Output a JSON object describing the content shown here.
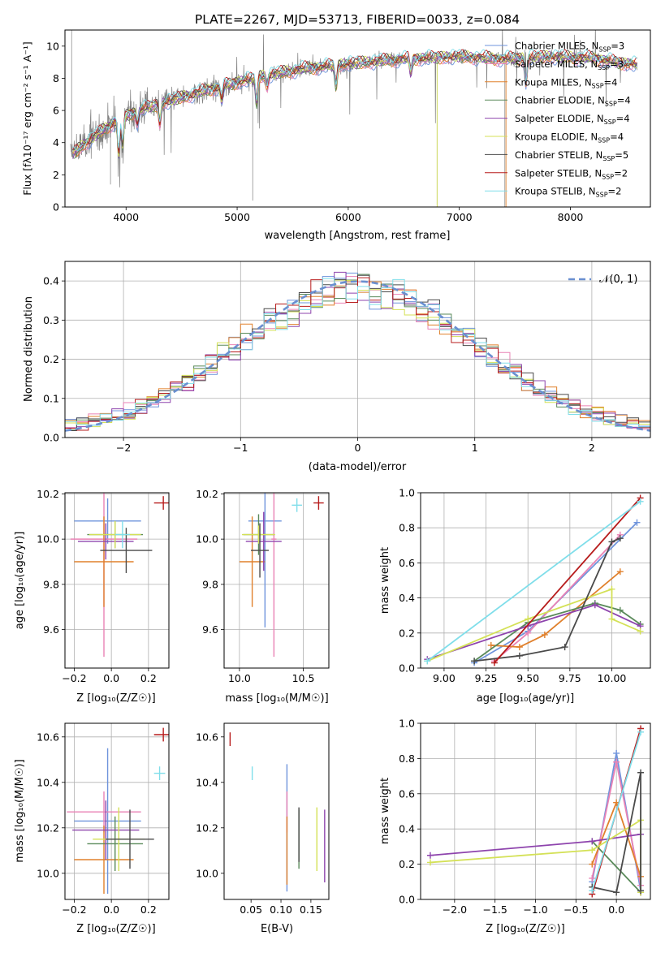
{
  "chart_data": [
    {
      "id": "spectrum",
      "type": "line",
      "title": "PLATE=2267, MJD=53713, FIBERID=0033, z=0.084",
      "xlabel": "wavelength [Angstrom, rest frame]",
      "ylabel": "Flux [fλ10⁻¹⁷ erg cm⁻² s⁻¹ A⁻¹]",
      "xlim": [
        3450,
        8720
      ],
      "ylim": [
        0,
        11
      ],
      "xticks": [
        4000,
        5000,
        6000,
        7000,
        8000
      ],
      "yticks": [
        0,
        2,
        4,
        6,
        8,
        10
      ],
      "grid": false,
      "legend_loc": "right",
      "observed_color": "#808080",
      "series": [
        {
          "name": "Chabrier MILES, N",
          "sub": "SSP",
          "suffix": "=3",
          "color": "#6f94dc"
        },
        {
          "name": "Salpeter MILES, N",
          "sub": "SSP",
          "suffix": "=3",
          "color": "#e982b5"
        },
        {
          "name": "Kroupa MILES, N",
          "sub": "SSP",
          "suffix": "=4",
          "color": "#e0802c"
        },
        {
          "name": "Chabrier ELODIE, N",
          "sub": "SSP",
          "suffix": "=4",
          "color": "#5a8a5a"
        },
        {
          "name": "Salpeter ELODIE, N",
          "sub": "SSP",
          "suffix": "=4",
          "color": "#8e44ad"
        },
        {
          "name": "Kroupa ELODIE, N",
          "sub": "SSP",
          "suffix": "=4",
          "color": "#d4e157"
        },
        {
          "name": "Chabrier STELIB, N",
          "sub": "SSP",
          "suffix": "=5",
          "color": "#4a4a4a"
        },
        {
          "name": "Salpeter STELIB, N",
          "sub": "SSP",
          "suffix": "=2",
          "color": "#b71c1c"
        },
        {
          "name": "Kroupa STELIB, N",
          "sub": "SSP",
          "suffix": "=2",
          "color": "#80deea"
        }
      ],
      "continuum": [
        [
          3500,
          3.2
        ],
        [
          3700,
          4.3
        ],
        [
          3900,
          5.3
        ],
        [
          4100,
          6.0
        ],
        [
          4400,
          6.6
        ],
        [
          4800,
          7.4
        ],
        [
          5200,
          8.1
        ],
        [
          5600,
          8.6
        ],
        [
          6000,
          8.9
        ],
        [
          6500,
          9.2
        ],
        [
          7000,
          9.35
        ],
        [
          7400,
          9.2
        ],
        [
          7800,
          9.35
        ],
        [
          8200,
          9.25
        ],
        [
          8500,
          8.9
        ]
      ]
    },
    {
      "id": "residuals",
      "type": "histogram",
      "xlabel": "(data-model)/error",
      "ylabel": "Normed distribution",
      "xlim": [
        -2.5,
        2.5
      ],
      "ylim": [
        0,
        0.45
      ],
      "xticks": [
        -2,
        -1,
        0,
        1,
        2
      ],
      "yticks": [
        0.0,
        0.1,
        0.2,
        0.3,
        0.4
      ],
      "grid": true,
      "legend_loc": "upper right",
      "normal_label": "𝒩(0, 1)",
      "normal_color": "#6a8fd0"
    },
    {
      "id": "age-vs-Z",
      "type": "errorbar",
      "xlabel": "Z [log₁₀(Z/Z☉)]",
      "ylabel": "age  [log₁₀(age/yr)]",
      "xlim": [
        -0.25,
        0.31
      ],
      "ylim": [
        9.43,
        10.205
      ],
      "xticks": [
        -0.2,
        0.0,
        0.2
      ],
      "yticks": [
        9.6,
        9.8,
        10.0,
        10.2
      ],
      "points": [
        {
          "color": "#6f94dc",
          "x": -0.02,
          "xerr": 0.18,
          "y": 10.08,
          "yerr": 0.1
        },
        {
          "color": "#e982b5",
          "x": -0.04,
          "xerr": 0.18,
          "y": 10.0,
          "yerr": 0.52
        },
        {
          "color": "#e0802c",
          "x": -0.04,
          "xerr": 0.16,
          "y": 9.9,
          "yerr": 0.2
        },
        {
          "color": "#5a8a5a",
          "x": 0.02,
          "xerr": 0.15,
          "y": 10.02,
          "yerr": 0.06
        },
        {
          "color": "#8e44ad",
          "x": -0.03,
          "xerr": 0.15,
          "y": 9.99,
          "yerr": 0.08
        },
        {
          "color": "#d4e157",
          "x": 0.02,
          "xerr": 0.14,
          "y": 10.02,
          "yerr": 0.06
        },
        {
          "color": "#4a4a4a",
          "x": 0.08,
          "xerr": 0.14,
          "y": 9.95,
          "yerr": 0.1
        },
        {
          "color": "#b71c1c",
          "x": 0.28,
          "xerr": 0.05,
          "y": 10.16,
          "yerr": 0.03
        },
        {
          "color": "#80deea",
          "x": 0.06,
          "xerr": 0.04,
          "y": 10.02,
          "yerr": 0.06
        }
      ]
    },
    {
      "id": "age-vs-mass",
      "type": "errorbar",
      "xlabel": "mass [log₁₀(M/M☉)]",
      "ylabel": "",
      "xlim": [
        9.88,
        10.7
      ],
      "ylim": [
        9.43,
        10.205
      ],
      "xticks": [
        10.0,
        10.5
      ],
      "yticks": [
        9.6,
        9.8,
        10.0,
        10.2
      ],
      "points": [
        {
          "color": "#6f94dc",
          "x": 10.2,
          "xerr": 0.13,
          "y": 10.08,
          "yerr": 0.47
        },
        {
          "color": "#e982b5",
          "x": 10.27,
          "xerr": 0.02,
          "y": 10.0,
          "yerr": 0.52
        },
        {
          "color": "#e0802c",
          "x": 10.1,
          "xerr": 0.1,
          "y": 9.9,
          "yerr": 0.2
        },
        {
          "color": "#5a8a5a",
          "x": 10.15,
          "xerr": 0.12,
          "y": 10.02,
          "yerr": 0.09
        },
        {
          "color": "#8e44ad",
          "x": 10.19,
          "xerr": 0.14,
          "y": 9.99,
          "yerr": 0.13
        },
        {
          "color": "#d4e157",
          "x": 10.15,
          "xerr": 0.13,
          "y": 10.02,
          "yerr": 0.04
        },
        {
          "color": "#4a4a4a",
          "x": 10.16,
          "xerr": 0.07,
          "y": 9.95,
          "yerr": 0.12
        },
        {
          "color": "#b71c1c",
          "x": 10.62,
          "xerr": 0.04,
          "y": 10.16,
          "yerr": 0.03
        },
        {
          "color": "#80deea",
          "x": 10.45,
          "xerr": 0.04,
          "y": 10.15,
          "yerr": 0.03
        }
      ]
    },
    {
      "id": "mass-weight-vs-age",
      "type": "line",
      "xlabel": "age  [log₁₀(age/yr)]",
      "ylabel": "mass weight",
      "xlim": [
        8.86,
        10.23
      ],
      "ylim": [
        0,
        1
      ],
      "xticks": [
        9.0,
        9.25,
        9.5,
        9.75,
        10.0
      ],
      "yticks": [
        0.0,
        0.2,
        0.4,
        0.6,
        0.8,
        1.0
      ],
      "series": [
        {
          "color": "#6f94dc",
          "points": [
            [
              9.18,
              0.03
            ],
            [
              9.5,
              0.21
            ],
            [
              10.15,
              0.83
            ]
          ]
        },
        {
          "color": "#e982b5",
          "points": [
            [
              9.3,
              0.04
            ],
            [
              9.5,
              0.2
            ],
            [
              10.05,
              0.76
            ]
          ]
        },
        {
          "color": "#e0802c",
          "points": [
            [
              9.28,
              0.13
            ],
            [
              9.45,
              0.12
            ],
            [
              9.6,
              0.19
            ],
            [
              10.05,
              0.55
            ]
          ]
        },
        {
          "color": "#5a8a5a",
          "points": [
            [
              9.18,
              0.04
            ],
            [
              9.5,
              0.26
            ],
            [
              9.9,
              0.37
            ],
            [
              10.05,
              0.33
            ],
            [
              10.17,
              0.25
            ]
          ]
        },
        {
          "color": "#8e44ad",
          "points": [
            [
              8.9,
              0.05
            ],
            [
              9.5,
              0.24
            ],
            [
              9.9,
              0.36
            ],
            [
              10.17,
              0.24
            ]
          ]
        },
        {
          "color": "#d4e157",
          "points": [
            [
              8.9,
              0.04
            ],
            [
              9.5,
              0.28
            ],
            [
              10.0,
              0.45
            ],
            [
              10.0,
              0.28
            ],
            [
              10.17,
              0.21
            ]
          ]
        },
        {
          "color": "#4a4a4a",
          "points": [
            [
              9.18,
              0.04
            ],
            [
              9.45,
              0.07
            ],
            [
              9.72,
              0.12
            ],
            [
              10.0,
              0.72
            ],
            [
              10.05,
              0.74
            ]
          ]
        },
        {
          "color": "#b71c1c",
          "points": [
            [
              9.3,
              0.03
            ],
            [
              10.17,
              0.97
            ]
          ]
        },
        {
          "color": "#80deea",
          "points": [
            [
              8.9,
              0.04
            ],
            [
              10.17,
              0.95
            ]
          ]
        }
      ]
    },
    {
      "id": "mass-vs-Z",
      "type": "errorbar",
      "xlabel": "Z [log₁₀(Z/Z☉)]",
      "ylabel": "mass [log₁₀(M/M☉)]",
      "xlim": [
        -0.25,
        0.31
      ],
      "ylim": [
        9.885,
        10.66
      ],
      "xticks": [
        -0.2,
        0.0,
        0.2
      ],
      "yticks": [
        10.0,
        10.2,
        10.4,
        10.6
      ],
      "points": [
        {
          "color": "#6f94dc",
          "x": -0.02,
          "xerr": 0.18,
          "y": 10.23,
          "yerr": 0.32
        },
        {
          "color": "#e982b5",
          "x": -0.04,
          "xerr": 0.2,
          "y": 10.27,
          "yerr": 0.09
        },
        {
          "color": "#e0802c",
          "x": -0.04,
          "xerr": 0.16,
          "y": 10.06,
          "yerr": 0.15
        },
        {
          "color": "#5a8a5a",
          "x": 0.02,
          "xerr": 0.15,
          "y": 10.13,
          "yerr": 0.12
        },
        {
          "color": "#8e44ad",
          "x": -0.03,
          "xerr": 0.18,
          "y": 10.19,
          "yerr": 0.13
        },
        {
          "color": "#d4e157",
          "x": 0.04,
          "xerr": 0.14,
          "y": 10.15,
          "yerr": 0.14
        },
        {
          "color": "#4a4a4a",
          "x": 0.1,
          "xerr": 0.13,
          "y": 10.15,
          "yerr": 0.13
        },
        {
          "color": "#b71c1c",
          "x": 0.28,
          "xerr": 0.05,
          "y": 10.61,
          "yerr": 0.03
        },
        {
          "color": "#80deea",
          "x": 0.26,
          "xerr": 0.03,
          "y": 10.44,
          "yerr": 0.03
        }
      ]
    },
    {
      "id": "mass-vs-ebv",
      "type": "errorbar",
      "xlabel": "E(B-V)",
      "ylabel": "",
      "xlim": [
        0.005,
        0.18
      ],
      "ylim": [
        9.885,
        10.66
      ],
      "xticks": [
        0.05,
        0.1,
        0.15
      ],
      "yticks": [
        10.0,
        10.2,
        10.4,
        10.6
      ],
      "points": [
        {
          "color": "#6f94dc",
          "x": 0.11,
          "xerr": 0,
          "y": 10.2,
          "yerr": 0.28
        },
        {
          "color": "#e982b5",
          "x": 0.11,
          "xerr": 0,
          "y": 10.27,
          "yerr": 0.09
        },
        {
          "color": "#e0802c",
          "x": 0.11,
          "xerr": 0,
          "y": 10.1,
          "yerr": 0.15
        },
        {
          "color": "#5a8a5a",
          "x": 0.13,
          "xerr": 0,
          "y": 10.15,
          "yerr": 0.13
        },
        {
          "color": "#8e44ad",
          "x": 0.173,
          "xerr": 0,
          "y": 10.12,
          "yerr": 0.16
        },
        {
          "color": "#d4e157",
          "x": 0.16,
          "xerr": 0,
          "y": 10.15,
          "yerr": 0.14
        },
        {
          "color": "#4a4a4a",
          "x": 0.13,
          "xerr": 0,
          "y": 10.17,
          "yerr": 0.12
        },
        {
          "color": "#b71c1c",
          "x": 0.015,
          "xerr": 0,
          "y": 10.59,
          "yerr": 0.03
        },
        {
          "color": "#80deea",
          "x": 0.052,
          "xerr": 0,
          "y": 10.44,
          "yerr": 0.03
        }
      ]
    },
    {
      "id": "mass-weight-vs-Z",
      "type": "line",
      "xlabel": "Z [log₁₀(Z/Z☉)]",
      "ylabel": "mass weight",
      "xlim": [
        -2.42,
        0.42
      ],
      "ylim": [
        0,
        1
      ],
      "xticks": [
        -2.0,
        -1.5,
        -1.0,
        -0.5,
        0.0
      ],
      "yticks": [
        0.0,
        0.2,
        0.4,
        0.6,
        0.8,
        1.0
      ],
      "series": [
        {
          "color": "#6f94dc",
          "points": [
            [
              -0.3,
              0.1
            ],
            [
              0.0,
              0.83
            ],
            [
              0.3,
              0.05
            ]
          ]
        },
        {
          "color": "#e982b5",
          "points": [
            [
              -0.3,
              0.12
            ],
            [
              0.0,
              0.78
            ],
            [
              0.3,
              0.08
            ]
          ]
        },
        {
          "color": "#e0802c",
          "points": [
            [
              -0.3,
              0.2
            ],
            [
              0.0,
              0.55
            ],
            [
              0.3,
              0.13
            ]
          ]
        },
        {
          "color": "#5a8a5a",
          "points": [
            [
              -0.3,
              0.33
            ],
            [
              0.3,
              0.04
            ]
          ]
        },
        {
          "color": "#8e44ad",
          "points": [
            [
              -2.3,
              0.25
            ],
            [
              -0.3,
              0.33
            ],
            [
              0.3,
              0.37
            ],
            [
              0.3,
              0.04
            ]
          ]
        },
        {
          "color": "#d4e157",
          "points": [
            [
              -2.3,
              0.21
            ],
            [
              -0.3,
              0.28
            ],
            [
              0.3,
              0.45
            ],
            [
              0.3,
              0.04
            ]
          ]
        },
        {
          "color": "#4a4a4a",
          "points": [
            [
              -0.3,
              0.07
            ],
            [
              0.0,
              0.04
            ],
            [
              0.3,
              0.72
            ],
            [
              0.3,
              0.05
            ]
          ]
        },
        {
          "color": "#b71c1c",
          "points": [
            [
              -0.3,
              0.03
            ],
            [
              0.3,
              0.97
            ]
          ]
        },
        {
          "color": "#80deea",
          "points": [
            [
              -0.3,
              0.05
            ],
            [
              0.3,
              0.95
            ]
          ]
        }
      ]
    }
  ]
}
